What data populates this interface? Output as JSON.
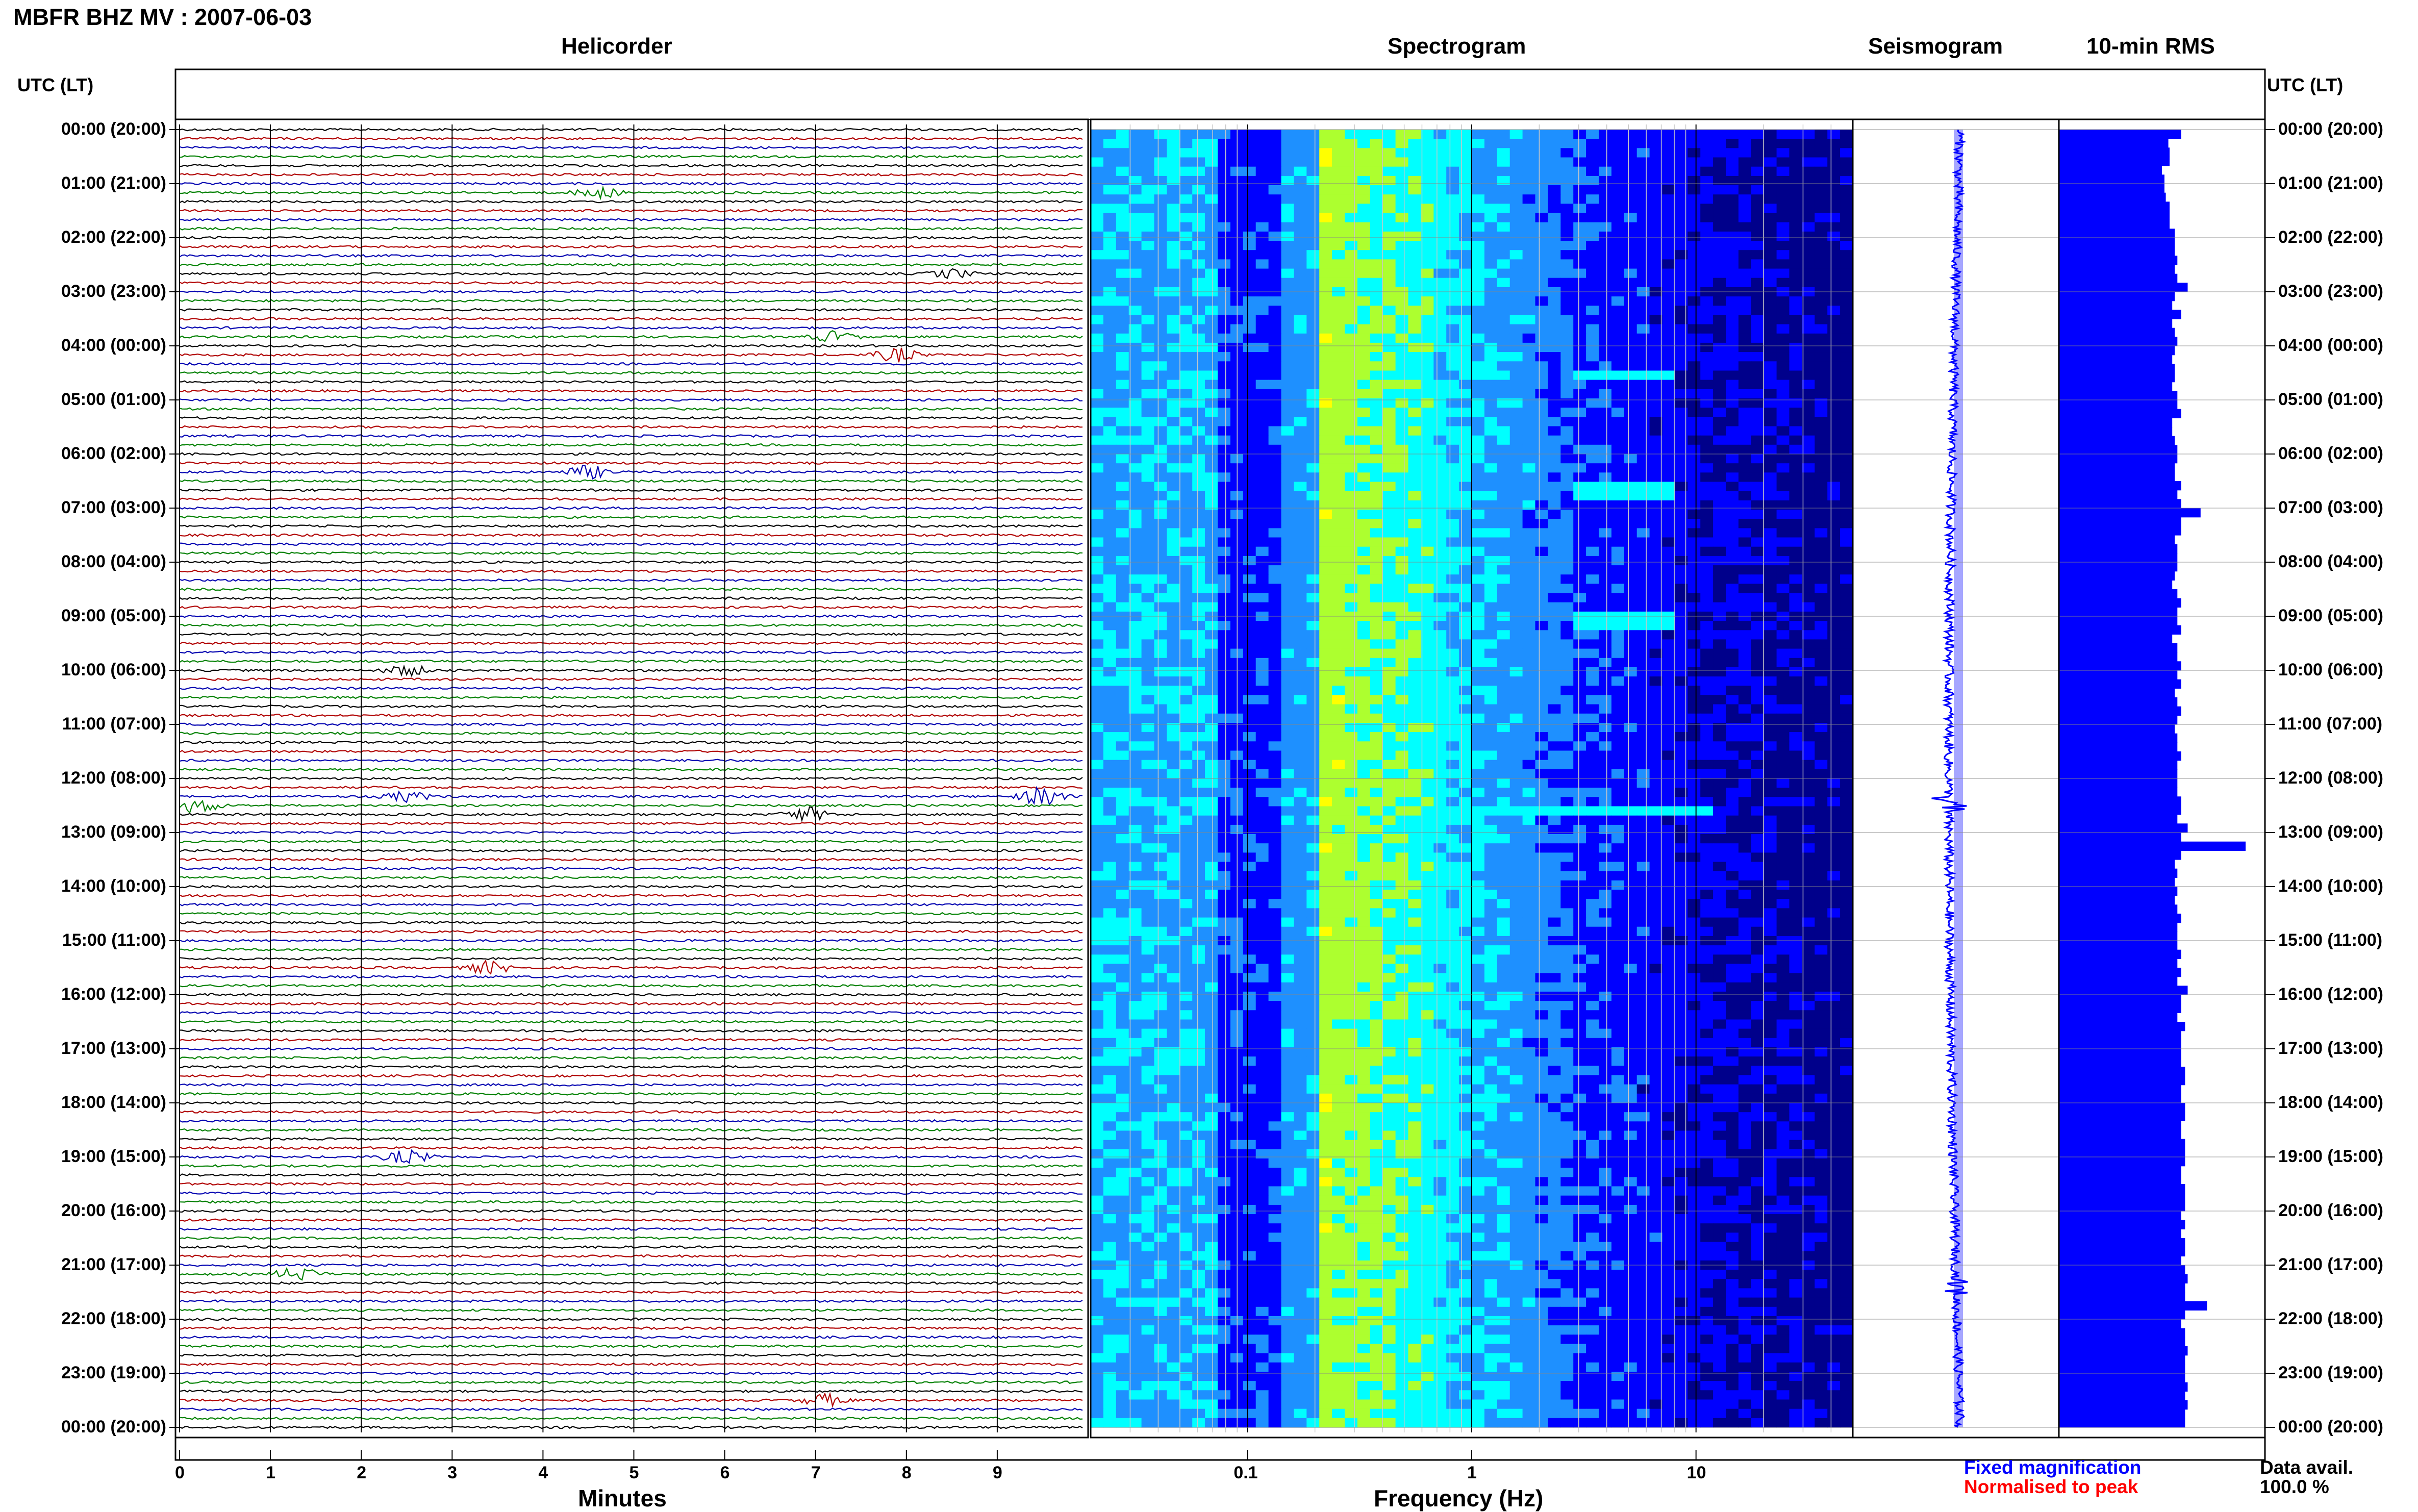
{
  "header": {
    "title": "MBFR BHZ MV : 2007-06-03",
    "panel_titles": [
      "Helicorder",
      "Spectrogram",
      "Seismogram",
      "10-min RMS"
    ],
    "time_axis_label": "UTC (LT)"
  },
  "chart_data": [
    {
      "type": "line",
      "name": "helicorder",
      "title": "Helicorder",
      "xlabel": "Minutes",
      "xlim": [
        0,
        10
      ],
      "x_ticks": [
        "0",
        "1",
        "2",
        "3",
        "4",
        "5",
        "6",
        "7",
        "8",
        "9"
      ],
      "rows_per_hour": 6,
      "hour_labels": [
        "00:00 (20:00)",
        "01:00 (21:00)",
        "02:00 (22:00)",
        "03:00 (23:00)",
        "04:00 (00:00)",
        "05:00 (01:00)",
        "06:00 (02:00)",
        "07:00 (03:00)",
        "08:00 (04:00)",
        "09:00 (05:00)",
        "10:00 (06:00)",
        "11:00 (07:00)",
        "12:00 (08:00)",
        "13:00 (09:00)",
        "14:00 (10:00)",
        "15:00 (11:00)",
        "16:00 (12:00)",
        "17:00 (13:00)",
        "18:00 (14:00)",
        "19:00 (15:00)",
        "20:00 (16:00)",
        "21:00 (17:00)",
        "22:00 (18:00)",
        "23:00 (19:00)",
        "00:00 (20:00)"
      ],
      "trace_colors": [
        "#000000",
        "#b00000",
        "#0000b0",
        "#008000"
      ],
      "events": [
        {
          "hour": 1.17,
          "minute": 4.6,
          "amplitude": 1.3
        },
        {
          "hour": 2.67,
          "minute": 8.5,
          "amplitude": 1.0
        },
        {
          "hour": 3.83,
          "minute": 7.2,
          "amplitude": 1.2
        },
        {
          "hour": 4.17,
          "minute": 7.9,
          "amplitude": 1.6
        },
        {
          "hour": 6.33,
          "minute": 4.5,
          "amplitude": 1.5
        },
        {
          "hour": 10.0,
          "minute": 2.5,
          "amplitude": 1.2
        },
        {
          "hour": 12.33,
          "minute": 2.5,
          "amplitude": 1.2
        },
        {
          "hour": 12.33,
          "minute": 9.5,
          "amplitude": 2.2
        },
        {
          "hour": 12.5,
          "minute": 0.2,
          "amplitude": 1.8
        },
        {
          "hour": 12.67,
          "minute": 6.9,
          "amplitude": 1.6
        },
        {
          "hour": 15.5,
          "minute": 3.4,
          "amplitude": 1.4
        },
        {
          "hour": 19.0,
          "minute": 2.5,
          "amplitude": 1.6
        },
        {
          "hour": 21.17,
          "minute": 1.3,
          "amplitude": 1.6
        },
        {
          "hour": 23.5,
          "minute": 7.1,
          "amplitude": 1.4
        }
      ]
    },
    {
      "type": "heatmap",
      "name": "spectrogram",
      "title": "Spectrogram",
      "xlabel": "Frequency (Hz)",
      "x_scale": "log",
      "xlim": [
        0.02,
        50
      ],
      "x_ticks": [
        0.1,
        1,
        10
      ],
      "x_tick_labels": [
        "0.1",
        "1",
        "10"
      ],
      "ylim_hours": [
        0,
        24
      ],
      "colormap": [
        "#00008b",
        "#0000ff",
        "#1e90ff",
        "#00ffff",
        "#adff2f",
        "#ffff00"
      ],
      "peak_band_hz": [
        0.2,
        0.8
      ],
      "spectral_lines": [
        {
          "hour": 6.6,
          "freq_range": [
            3,
            8
          ]
        },
        {
          "hour": 9.0,
          "freq_range": [
            3,
            8
          ]
        },
        {
          "hour": 12.5,
          "freq_range": [
            1,
            12
          ]
        },
        {
          "hour": 4.5,
          "freq_range": [
            3,
            8
          ]
        }
      ]
    },
    {
      "type": "line",
      "name": "seismogram",
      "title": "Seismogram",
      "color": "#0000ff",
      "ylim_hours": [
        0,
        24
      ]
    },
    {
      "type": "bar",
      "name": "rms",
      "title": "10-min RMS",
      "orientation": "horizontal",
      "color": "#0000ff",
      "ylim_hours": [
        0,
        24
      ],
      "values": [
        0.95,
        0.85,
        0.86,
        0.86,
        0.8,
        0.82,
        0.82,
        0.83,
        0.86,
        0.86,
        0.86,
        0.9,
        0.9,
        0.9,
        0.92,
        0.9,
        0.92,
        1.0,
        0.9,
        0.88,
        0.95,
        0.88,
        0.9,
        0.92,
        0.9,
        0.88,
        0.9,
        0.9,
        0.88,
        0.92,
        0.92,
        0.95,
        0.88,
        0.88,
        0.9,
        0.92,
        0.92,
        0.9,
        0.9,
        0.95,
        0.92,
        0.95,
        1.1,
        0.95,
        0.95,
        0.9,
        0.92,
        0.92,
        0.92,
        0.9,
        0.88,
        0.92,
        0.95,
        0.92,
        0.92,
        0.95,
        0.88,
        0.92,
        0.92,
        0.95,
        0.92,
        0.95,
        0.9,
        0.92,
        0.95,
        0.92,
        0.9,
        0.92,
        0.92,
        0.95,
        0.92,
        0.92,
        0.92,
        0.92,
        0.95,
        0.95,
        0.92,
        1.0,
        0.95,
        1.45,
        0.95,
        0.9,
        0.92,
        0.9,
        0.92,
        0.9,
        0.92,
        0.95,
        0.92,
        0.92,
        0.92,
        0.95,
        0.92,
        0.95,
        0.92,
        1.0,
        0.95,
        0.95,
        0.92,
        0.98,
        0.95,
        0.95,
        0.95,
        0.95,
        0.98,
        0.98,
        0.95,
        0.95,
        0.98,
        0.98,
        0.95,
        0.95,
        0.98,
        0.98,
        0.98,
        0.95,
        0.95,
        0.98,
        0.98,
        0.98,
        0.95,
        0.98,
        0.95,
        0.98,
        0.98,
        0.95,
        0.98,
        1.0,
        0.98,
        0.98,
        1.15,
        0.98,
        0.95,
        0.98,
        0.98,
        1.0,
        0.98,
        0.98,
        0.98,
        1.0,
        0.98,
        1.0,
        0.98,
        0.98
      ]
    }
  ],
  "legend": {
    "fixed": "Fixed magnification",
    "fixed_color": "#0000ff",
    "normalised": "Normalised to peak",
    "normalised_color": "#ff0000"
  },
  "footer": {
    "data_avail_label": "Data avail.",
    "data_avail_value": "100.0 %"
  }
}
